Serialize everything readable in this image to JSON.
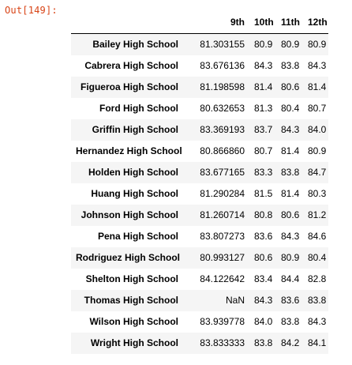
{
  "prompt": "Out[149]:",
  "table": {
    "columns": [
      "9th",
      "10th",
      "11th",
      "12th"
    ],
    "rows": [
      {
        "school": "Bailey High School",
        "values": [
          "81.303155",
          "80.9",
          "80.9",
          "80.9"
        ]
      },
      {
        "school": "Cabrera High School",
        "values": [
          "83.676136",
          "84.3",
          "83.8",
          "84.3"
        ]
      },
      {
        "school": "Figueroa High School",
        "values": [
          "81.198598",
          "81.4",
          "80.6",
          "81.4"
        ]
      },
      {
        "school": "Ford High School",
        "values": [
          "80.632653",
          "81.3",
          "80.4",
          "80.7"
        ]
      },
      {
        "school": "Griffin High School",
        "values": [
          "83.369193",
          "83.7",
          "84.3",
          "84.0"
        ]
      },
      {
        "school": "Hernandez High School",
        "values": [
          "80.866860",
          "80.7",
          "81.4",
          "80.9"
        ]
      },
      {
        "school": "Holden High School",
        "values": [
          "83.677165",
          "83.3",
          "83.8",
          "84.7"
        ]
      },
      {
        "school": "Huang High School",
        "values": [
          "81.290284",
          "81.5",
          "81.4",
          "80.3"
        ]
      },
      {
        "school": "Johnson High School",
        "values": [
          "81.260714",
          "80.8",
          "80.6",
          "81.2"
        ]
      },
      {
        "school": "Pena High School",
        "values": [
          "83.807273",
          "83.6",
          "84.3",
          "84.6"
        ]
      },
      {
        "school": "Rodriguez High School",
        "values": [
          "80.993127",
          "80.6",
          "80.9",
          "80.4"
        ]
      },
      {
        "school": "Shelton High School",
        "values": [
          "84.122642",
          "83.4",
          "84.4",
          "82.8"
        ]
      },
      {
        "school": "Thomas High School",
        "values": [
          "NaN",
          "84.3",
          "83.6",
          "83.8"
        ]
      },
      {
        "school": "Wilson High School",
        "values": [
          "83.939778",
          "84.0",
          "83.8",
          "84.3"
        ]
      },
      {
        "school": "Wright High School",
        "values": [
          "83.833333",
          "83.8",
          "84.2",
          "84.1"
        ]
      }
    ]
  }
}
